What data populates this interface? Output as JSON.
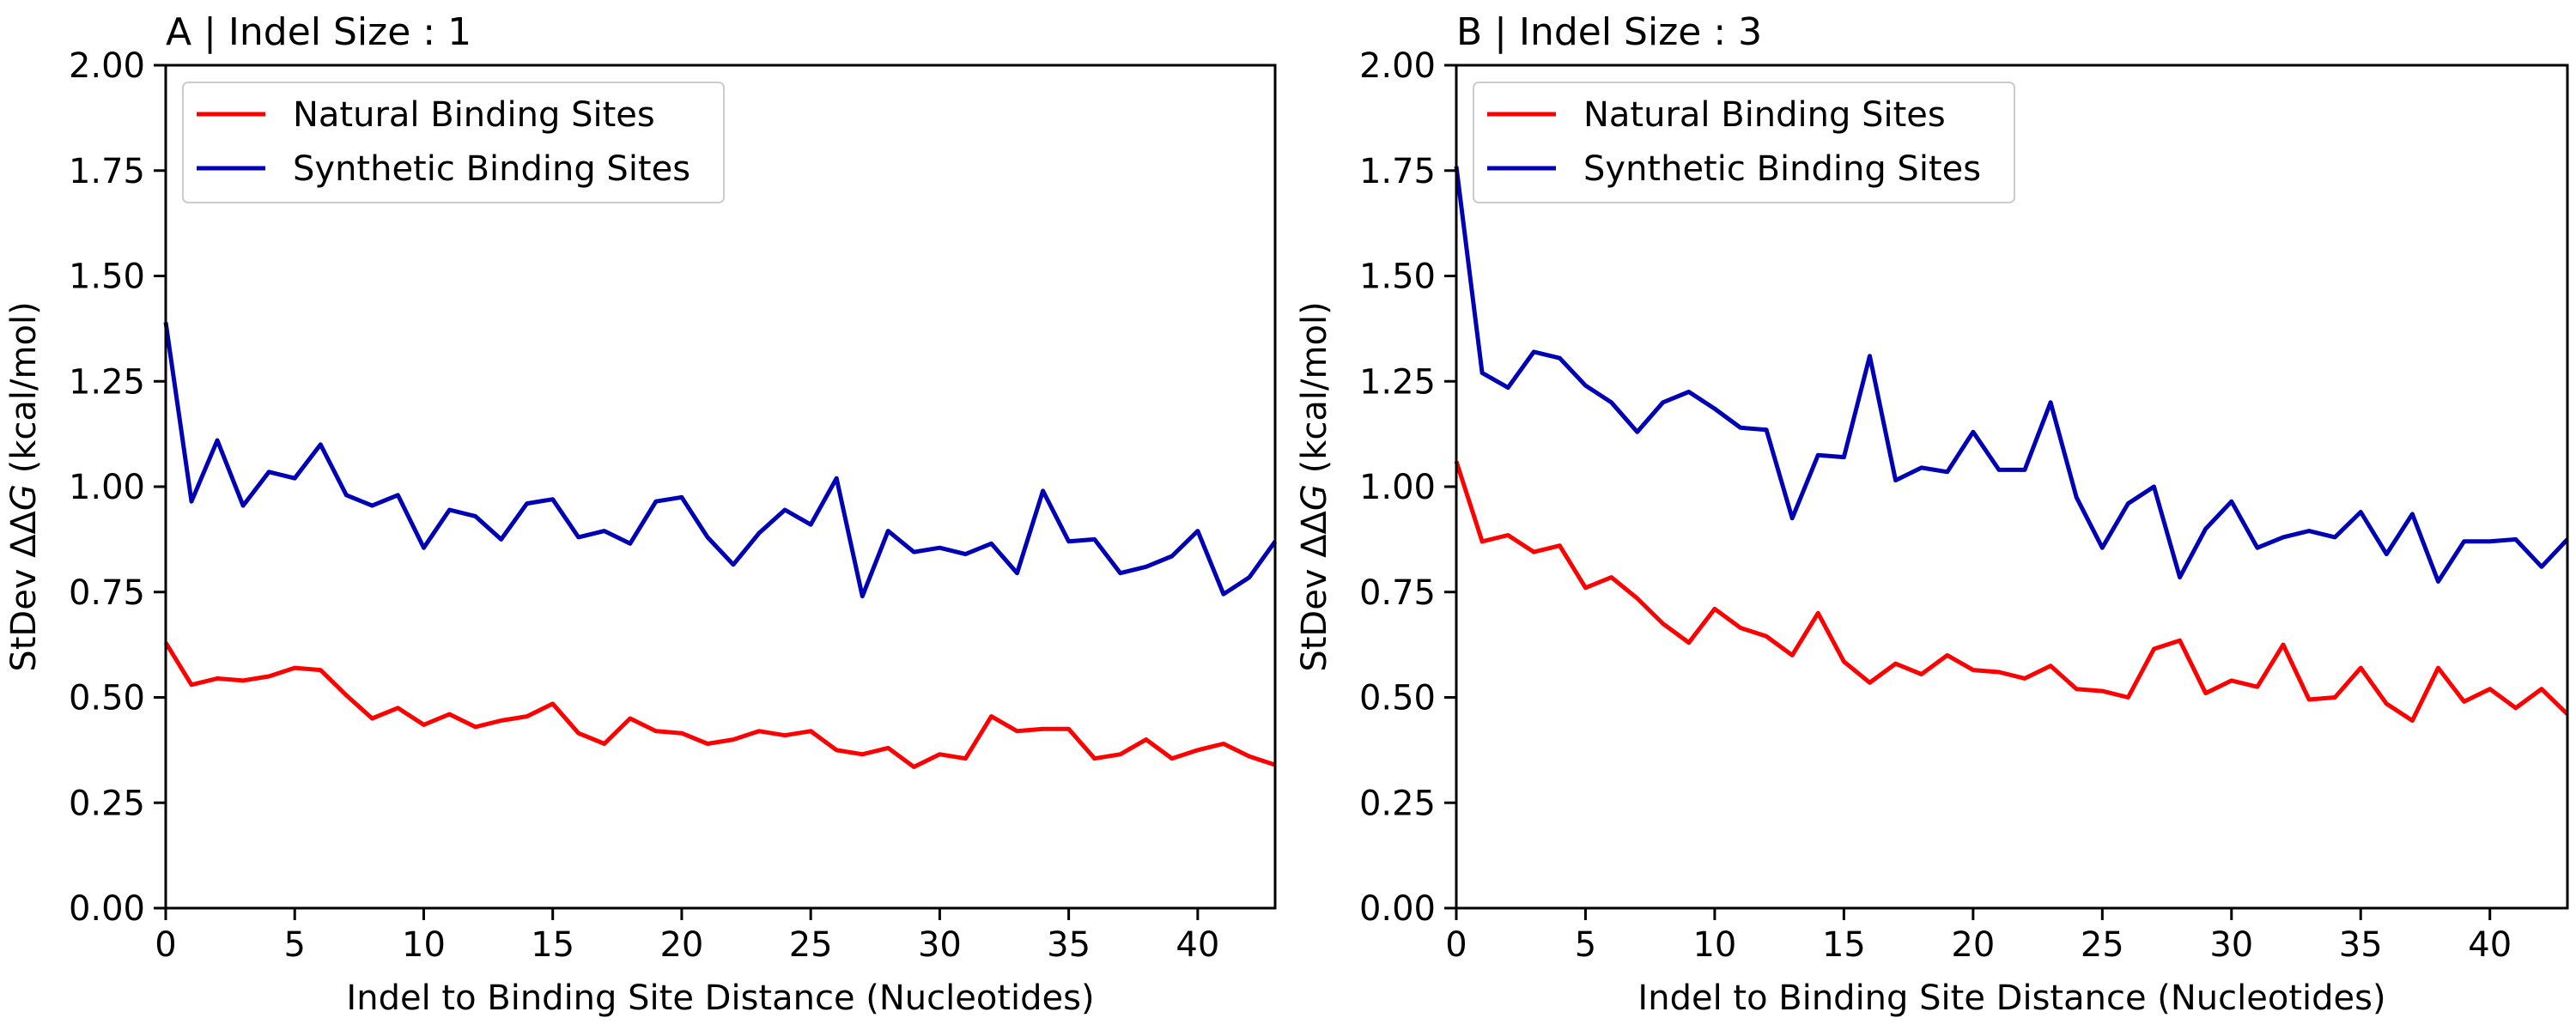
{
  "chart_data": [
    {
      "type": "line",
      "title": "A | Indel Size : 1",
      "xlabel": "Indel to Binding Site Distance (Nucleotides)",
      "ylabel_prefix": "StDev ΔΔ",
      "ylabel_italic": "G",
      "ylabel_suffix": " (kcal/mol)",
      "xlim": [
        0,
        43
      ],
      "ylim": [
        0,
        2.0
      ],
      "xticks": [
        "0",
        "5",
        "10",
        "15",
        "20",
        "25",
        "30",
        "35",
        "40"
      ],
      "yticks": [
        "0.00",
        "0.25",
        "0.50",
        "0.75",
        "1.00",
        "1.25",
        "1.50",
        "1.75",
        "2.00"
      ],
      "grid": false,
      "legend_position": "top-left",
      "x": [
        0,
        1,
        2,
        3,
        4,
        5,
        6,
        7,
        8,
        9,
        10,
        11,
        12,
        13,
        14,
        15,
        16,
        17,
        18,
        19,
        20,
        21,
        22,
        23,
        24,
        25,
        26,
        27,
        28,
        29,
        30,
        31,
        32,
        33,
        34,
        35,
        36,
        37,
        38,
        39,
        40,
        41,
        42,
        43
      ],
      "series": [
        {
          "name": "Natural Binding Sites",
          "color": "#ff0000",
          "values": [
            0.63,
            0.53,
            0.545,
            0.54,
            0.55,
            0.57,
            0.565,
            0.505,
            0.45,
            0.475,
            0.435,
            0.46,
            0.43,
            0.445,
            0.455,
            0.485,
            0.415,
            0.39,
            0.45,
            0.42,
            0.415,
            0.39,
            0.4,
            0.42,
            0.41,
            0.42,
            0.375,
            0.365,
            0.38,
            0.335,
            0.365,
            0.355,
            0.455,
            0.42,
            0.425,
            0.425,
            0.355,
            0.365,
            0.4,
            0.355,
            0.375,
            0.39,
            0.36,
            0.34
          ]
        },
        {
          "name": "Synthetic Binding Sites",
          "color": "#0000b4",
          "values": [
            1.39,
            0.965,
            1.11,
            0.955,
            1.035,
            1.02,
            1.1,
            0.98,
            0.955,
            0.98,
            0.855,
            0.945,
            0.93,
            0.875,
            0.96,
            0.97,
            0.88,
            0.895,
            0.865,
            0.965,
            0.975,
            0.88,
            0.815,
            0.89,
            0.945,
            0.91,
            1.02,
            0.74,
            0.895,
            0.845,
            0.855,
            0.84,
            0.865,
            0.795,
            0.99,
            0.87,
            0.875,
            0.795,
            0.81,
            0.835,
            0.895,
            0.745,
            0.785,
            0.87
          ]
        }
      ]
    },
    {
      "type": "line",
      "title": "B | Indel Size : 3",
      "xlabel": "Indel to Binding Site Distance (Nucleotides)",
      "ylabel_prefix": "StDev ΔΔ",
      "ylabel_italic": "G",
      "ylabel_suffix": " (kcal/mol)",
      "xlim": [
        0,
        43
      ],
      "ylim": [
        0,
        2.0
      ],
      "xticks": [
        "0",
        "5",
        "10",
        "15",
        "20",
        "25",
        "30",
        "35",
        "40"
      ],
      "yticks": [
        "0.00",
        "0.25",
        "0.50",
        "0.75",
        "1.00",
        "1.25",
        "1.50",
        "1.75",
        "2.00"
      ],
      "grid": false,
      "legend_position": "top-left",
      "x": [
        0,
        1,
        2,
        3,
        4,
        5,
        6,
        7,
        8,
        9,
        10,
        11,
        12,
        13,
        14,
        15,
        16,
        17,
        18,
        19,
        20,
        21,
        22,
        23,
        24,
        25,
        26,
        27,
        28,
        29,
        30,
        31,
        32,
        33,
        34,
        35,
        36,
        37,
        38,
        39,
        40,
        41,
        42,
        43
      ],
      "series": [
        {
          "name": "Natural Binding Sites",
          "color": "#ff0000",
          "values": [
            1.06,
            0.87,
            0.885,
            0.845,
            0.86,
            0.76,
            0.785,
            0.735,
            0.675,
            0.63,
            0.71,
            0.665,
            0.645,
            0.6,
            0.7,
            0.585,
            0.535,
            0.58,
            0.555,
            0.6,
            0.565,
            0.56,
            0.545,
            0.575,
            0.52,
            0.515,
            0.5,
            0.615,
            0.635,
            0.51,
            0.54,
            0.525,
            0.625,
            0.495,
            0.5,
            0.57,
            0.485,
            0.445,
            0.57,
            0.49,
            0.52,
            0.475,
            0.52,
            0.46
          ]
        },
        {
          "name": "Synthetic Binding Sites",
          "color": "#0000b4",
          "values": [
            1.76,
            1.27,
            1.235,
            1.32,
            1.305,
            1.24,
            1.2,
            1.13,
            1.2,
            1.225,
            1.185,
            1.14,
            1.135,
            0.925,
            1.075,
            1.07,
            1.31,
            1.015,
            1.045,
            1.035,
            1.13,
            1.04,
            1.04,
            1.2,
            0.975,
            0.855,
            0.96,
            1.0,
            0.785,
            0.9,
            0.965,
            0.855,
            0.88,
            0.895,
            0.88,
            0.94,
            0.84,
            0.935,
            0.775,
            0.87,
            0.87,
            0.875,
            0.81,
            0.875
          ]
        }
      ]
    }
  ]
}
